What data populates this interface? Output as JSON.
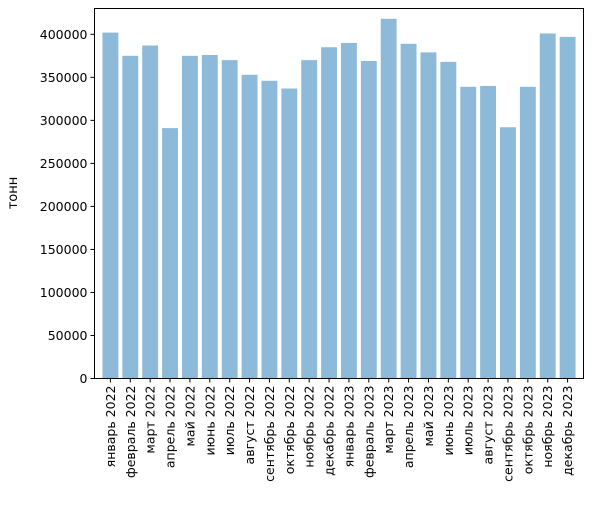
{
  "chart_data": {
    "type": "bar",
    "title": "",
    "xlabel": "",
    "ylabel": "тонн",
    "ylim": [
      0,
      430000
    ],
    "yticks": [
      0,
      50000,
      100000,
      150000,
      200000,
      250000,
      300000,
      350000,
      400000
    ],
    "ytick_labels": [
      "0",
      "50000",
      "100000",
      "150000",
      "200000",
      "250000",
      "300000",
      "350000",
      "400000"
    ],
    "grid": false,
    "bar_color": "#8ebad9",
    "categories": [
      "январь 2022",
      "февраль 2022",
      "март 2022",
      "апрель 2022",
      "май 2022",
      "июнь 2022",
      "июль 2022",
      "август 2022",
      "сентябрь 2022",
      "октябрь 2022",
      "ноябрь 2022",
      "декабрь 2022",
      "январь 2023",
      "февраль 2023",
      "март 2023",
      "апрель 2023",
      "май 2023",
      "июнь 2023",
      "июль 2023",
      "август 2023",
      "сентябрь 2023",
      "октябрь 2023",
      "ноябрь 2023",
      "декабрь 2023"
    ],
    "values": [
      402000,
      375000,
      387000,
      291000,
      375000,
      376000,
      370000,
      353000,
      346000,
      337000,
      370000,
      385000,
      390000,
      369000,
      418000,
      389000,
      379000,
      368000,
      339000,
      340000,
      292000,
      339000,
      401000,
      397000
    ]
  }
}
